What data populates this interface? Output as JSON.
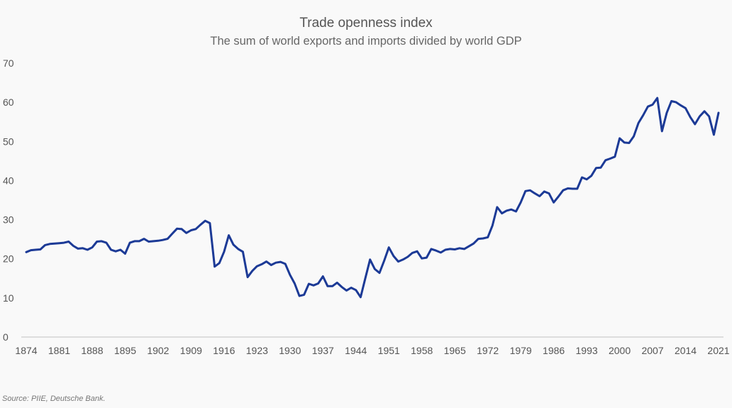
{
  "chart_data": {
    "type": "line",
    "title": "Trade openness index",
    "subtitle": "The sum of world exports and imports divided by world GDP",
    "xlabel": "",
    "ylabel": "",
    "xlim": [
      1874,
      2021
    ],
    "ylim": [
      0,
      70
    ],
    "x_ticks": [
      1874,
      1881,
      1888,
      1895,
      1902,
      1909,
      1916,
      1923,
      1930,
      1937,
      1944,
      1951,
      1958,
      1965,
      1972,
      1979,
      1986,
      1993,
      2000,
      2007,
      2014,
      2021
    ],
    "y_ticks": [
      0,
      10,
      20,
      30,
      40,
      50,
      60,
      70
    ],
    "grid": false,
    "line_color": "#1c3a96",
    "x_start": 1874,
    "values": [
      21.7,
      22.2,
      22.3,
      22.4,
      23.5,
      23.8,
      23.9,
      24.0,
      24.1,
      24.4,
      23.3,
      22.6,
      22.7,
      22.3,
      22.9,
      24.4,
      24.5,
      24.1,
      22.3,
      21.9,
      22.3,
      21.3,
      24.1,
      24.5,
      24.5,
      25.1,
      24.4,
      24.5,
      24.6,
      24.8,
      25.1,
      26.4,
      27.7,
      27.6,
      26.6,
      27.3,
      27.6,
      28.7,
      29.7,
      29.1,
      18.0,
      18.9,
      21.8,
      26.0,
      23.6,
      22.5,
      21.8,
      15.3,
      16.9,
      18.1,
      18.6,
      19.3,
      18.4,
      19.0,
      19.2,
      18.7,
      15.9,
      13.7,
      10.5,
      10.8,
      13.6,
      13.2,
      13.7,
      15.5,
      13.0,
      13.0,
      13.9,
      12.8,
      11.9,
      12.6,
      12.0,
      10.2,
      15.0,
      19.8,
      17.4,
      16.4,
      19.5,
      22.9,
      20.7,
      19.3,
      19.8,
      20.5,
      21.5,
      21.9,
      20.1,
      20.3,
      22.5,
      22.1,
      21.6,
      22.3,
      22.5,
      22.4,
      22.7,
      22.5,
      23.2,
      23.9,
      25.1,
      25.2,
      25.5,
      28.5,
      33.2,
      31.6,
      32.3,
      32.6,
      32.1,
      34.4,
      37.3,
      37.5,
      36.7,
      36.0,
      37.2,
      36.7,
      34.4,
      35.9,
      37.5,
      38.0,
      37.9,
      37.9,
      40.8,
      40.3,
      41.2,
      43.2,
      43.3,
      45.2,
      45.6,
      46.1,
      50.8,
      49.7,
      49.6,
      51.3,
      54.7,
      56.7,
      58.9,
      59.4,
      61.1,
      52.6,
      57.3,
      60.3,
      60.0,
      59.2,
      58.5,
      56.2,
      54.4,
      56.4,
      57.7,
      56.4,
      51.7,
      57.3
    ]
  },
  "source": "Source: PIIE, Deutsche Bank."
}
